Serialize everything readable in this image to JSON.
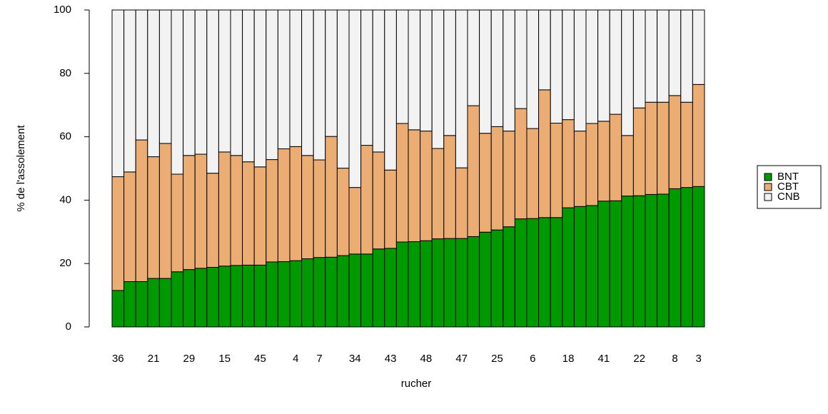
{
  "chart_data": {
    "type": "stacked_bar",
    "x_label": "rucher",
    "y_label": "% de l'assolement",
    "categories": [
      "36",
      null,
      null,
      "21",
      null,
      null,
      "29",
      null,
      null,
      "15",
      null,
      null,
      "45",
      null,
      null,
      "4",
      null,
      "7",
      null,
      null,
      "34",
      null,
      null,
      "43",
      null,
      null,
      "48",
      null,
      null,
      "47",
      null,
      null,
      "25",
      null,
      null,
      "6",
      null,
      null,
      "18",
      null,
      null,
      "41",
      null,
      null,
      "22",
      null,
      null,
      "8",
      null,
      "3"
    ],
    "series": [
      {
        "name": "BNT",
        "color": "#009900",
        "values": [
          11.5,
          14.3,
          14.3,
          15.3,
          15.3,
          17.4,
          18.1,
          18.5,
          18.8,
          19.2,
          19.4,
          19.5,
          19.5,
          20.5,
          20.6,
          20.9,
          21.5,
          21.9,
          22.0,
          22.5,
          23.0,
          23.0,
          24.6,
          24.8,
          26.8,
          26.9,
          27.2,
          27.8,
          27.9,
          27.9,
          28.5,
          29.9,
          30.6,
          31.6,
          34.1,
          34.2,
          34.5,
          34.5,
          37.6,
          38.0,
          38.3,
          39.7,
          39.8,
          41.3,
          41.4,
          41.8,
          41.9,
          43.6,
          44.0,
          44.3
        ]
      },
      {
        "name": "CBT",
        "color": "#EBAD73",
        "values": [
          35.9,
          34.6,
          44.7,
          38.4,
          42.6,
          30.8,
          36.0,
          36.0,
          29.7,
          36.0,
          34.7,
          32.6,
          31.0,
          32.3,
          35.6,
          36.0,
          32.6,
          30.8,
          38.1,
          27.6,
          21.0,
          34.3,
          30.6,
          24.7,
          37.4,
          35.3,
          34.6,
          28.5,
          32.5,
          22.3,
          41.3,
          31.2,
          32.6,
          30.2,
          34.8,
          28.4,
          40.3,
          29.8,
          27.8,
          23.8,
          25.9,
          25.2,
          27.3,
          19.1,
          27.7,
          29.1,
          29.0,
          29.4,
          26.9,
          32.2
        ]
      },
      {
        "name": "CNB",
        "color": "#F2F2F2",
        "values": [
          52.6,
          51.1,
          41.0,
          46.3,
          42.1,
          51.8,
          45.9,
          45.5,
          51.5,
          44.8,
          45.9,
          47.9,
          49.5,
          47.2,
          43.8,
          43.1,
          45.9,
          47.3,
          39.9,
          49.9,
          56.0,
          42.7,
          44.8,
          50.5,
          35.8,
          37.8,
          38.2,
          43.7,
          39.6,
          49.8,
          30.2,
          38.9,
          36.8,
          38.2,
          31.1,
          37.4,
          25.2,
          35.7,
          34.6,
          38.2,
          35.8,
          35.1,
          32.9,
          39.6,
          30.9,
          29.1,
          29.1,
          27.0,
          29.1,
          23.5
        ]
      }
    ],
    "ylim": [
      0,
      100
    ],
    "yticks": [
      0,
      20,
      40,
      60,
      80,
      100
    ],
    "legend": "right"
  }
}
